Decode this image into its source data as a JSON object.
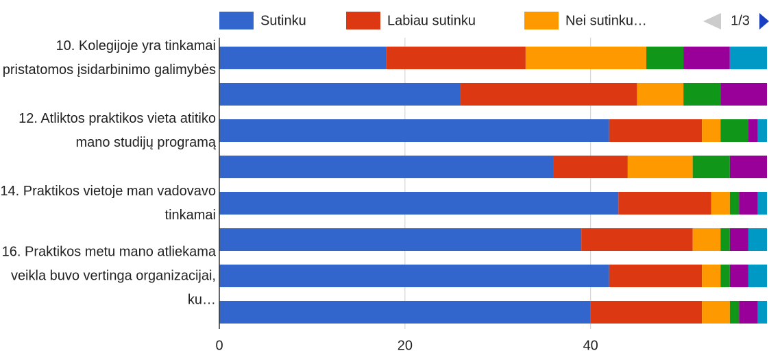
{
  "chart_data": {
    "type": "stacked_bar_horizontal",
    "categories": [
      "10. Kolegijoje yra tinkamai pristatomos įsidarbinimo galimybės",
      null,
      "12. Atliktos praktikos vieta atitiko mano studijų programą",
      null,
      "14. Praktikos vietoje man vadovavo tinkamai",
      null,
      "16. Praktikos metu mano atliekama veikla buvo vertinga organizacijai, ku…",
      null
    ],
    "series": [
      {
        "name": "Sutinku",
        "color": "#3366cc",
        "values": [
          18,
          26,
          42,
          36,
          43,
          39,
          42,
          40
        ]
      },
      {
        "name": "Labiau sutinku",
        "color": "#dc3912",
        "values": [
          15,
          19,
          10,
          8,
          10,
          12,
          10,
          12
        ]
      },
      {
        "name": "Nei sutinku…",
        "color": "#ff9900",
        "values": [
          13,
          5,
          2,
          7,
          2,
          3,
          2,
          3
        ]
      },
      {
        "color": "#109618",
        "values": [
          4,
          4,
          3,
          4,
          1,
          1,
          1,
          1
        ]
      },
      {
        "color": "#990099",
        "values": [
          5,
          5,
          1,
          4,
          2,
          2,
          2,
          2
        ]
      },
      {
        "color": "#0099c6",
        "values": [
          4,
          0,
          1,
          0,
          1,
          2,
          2,
          1
        ]
      }
    ],
    "legend_page": "1/3",
    "xlim": [
      0,
      59
    ],
    "xticks": [
      0,
      20,
      40
    ],
    "grid": true
  }
}
